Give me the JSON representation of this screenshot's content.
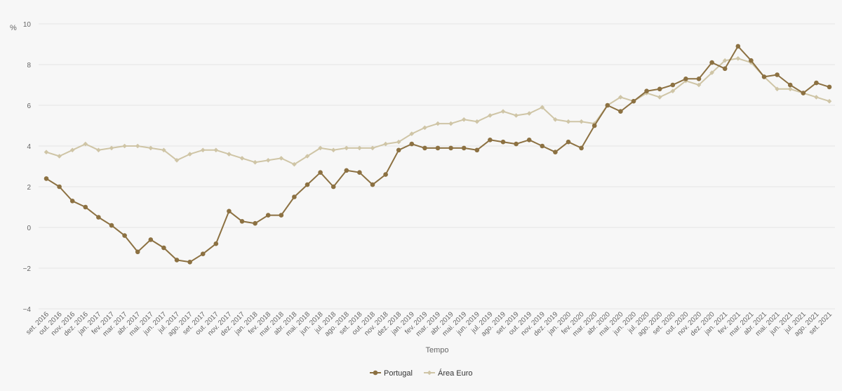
{
  "chart_data": {
    "type": "line",
    "title": "",
    "xlabel": "Tempo",
    "ylabel": "%",
    "ylim": [
      -4,
      10
    ],
    "yticks": [
      -4,
      -2,
      0,
      2,
      4,
      6,
      8,
      10
    ],
    "grid": true,
    "legend_position": "bottom-center",
    "x": [
      "set. 2016",
      "out. 2016",
      "nov. 2016",
      "dez. 2016",
      "jan. 2017",
      "fev. 2017",
      "mar. 2017",
      "abr. 2017",
      "mai. 2017",
      "jun. 2017",
      "jul. 2017",
      "ago. 2017",
      "set. 2017",
      "out. 2017",
      "nov. 2017",
      "dez. 2017",
      "jan. 2018",
      "fev. 2018",
      "mar. 2018",
      "abr. 2018",
      "mai. 2018",
      "jun. 2018",
      "jul. 2018",
      "ago. 2018",
      "set. 2018",
      "out. 2018",
      "nov. 2018",
      "dez. 2018",
      "jan. 2019",
      "fev. 2019",
      "mar. 2019",
      "abr. 2019",
      "mai. 2019",
      "jun. 2019",
      "jul. 2019",
      "ago. 2019",
      "set. 2019",
      "out. 2019",
      "nov. 2019",
      "dez. 2019",
      "jan. 2020",
      "fev. 2020",
      "mar. 2020",
      "abr. 2020",
      "mai. 2020",
      "jun. 2020",
      "jul. 2020",
      "ago. 2020",
      "set. 2020",
      "out. 2020",
      "nov. 2020",
      "dez. 2020",
      "jan. 2021",
      "fev. 2021",
      "mar. 2021",
      "abr. 2021",
      "mai. 2021",
      "jun. 2021",
      "jul. 2021",
      "ago. 2021",
      "set. 2021"
    ],
    "series": [
      {
        "name": "Portugal",
        "color": "#8c7142",
        "marker": "circle",
        "values": [
          2.4,
          2.0,
          1.3,
          1.0,
          0.5,
          0.1,
          -0.4,
          -1.2,
          -0.6,
          -1.0,
          -1.6,
          -1.7,
          -1.3,
          -0.8,
          0.8,
          0.3,
          0.2,
          0.6,
          0.6,
          1.5,
          2.1,
          2.7,
          2.0,
          2.8,
          2.7,
          2.1,
          2.6,
          3.8,
          4.1,
          3.9,
          3.9,
          3.9,
          3.9,
          3.8,
          4.3,
          4.2,
          4.1,
          4.3,
          4.0,
          3.7,
          4.2,
          3.9,
          5.0,
          6.0,
          5.7,
          6.2,
          6.7,
          6.8,
          7.0,
          7.3,
          7.3,
          8.1,
          7.8,
          8.9,
          8.2,
          7.4,
          7.5,
          7.0,
          6.6,
          7.1,
          6.9
        ]
      },
      {
        "name": "Área Euro",
        "color": "#cfc5a6",
        "marker": "diamond",
        "values": [
          3.7,
          3.5,
          3.8,
          4.1,
          3.8,
          3.9,
          4.0,
          4.0,
          3.9,
          3.8,
          3.3,
          3.6,
          3.8,
          3.8,
          3.6,
          3.4,
          3.2,
          3.3,
          3.4,
          3.1,
          3.5,
          3.9,
          3.8,
          3.9,
          3.9,
          3.9,
          4.1,
          4.2,
          4.6,
          4.9,
          5.1,
          5.1,
          5.3,
          5.2,
          5.5,
          5.7,
          5.5,
          5.6,
          5.9,
          5.3,
          5.2,
          5.2,
          5.1,
          6.0,
          6.4,
          6.2,
          6.6,
          6.4,
          6.7,
          7.2,
          7.0,
          7.6,
          8.2,
          8.3,
          8.1,
          7.4,
          6.8,
          6.8,
          6.6,
          6.4,
          6.2
        ]
      }
    ]
  }
}
